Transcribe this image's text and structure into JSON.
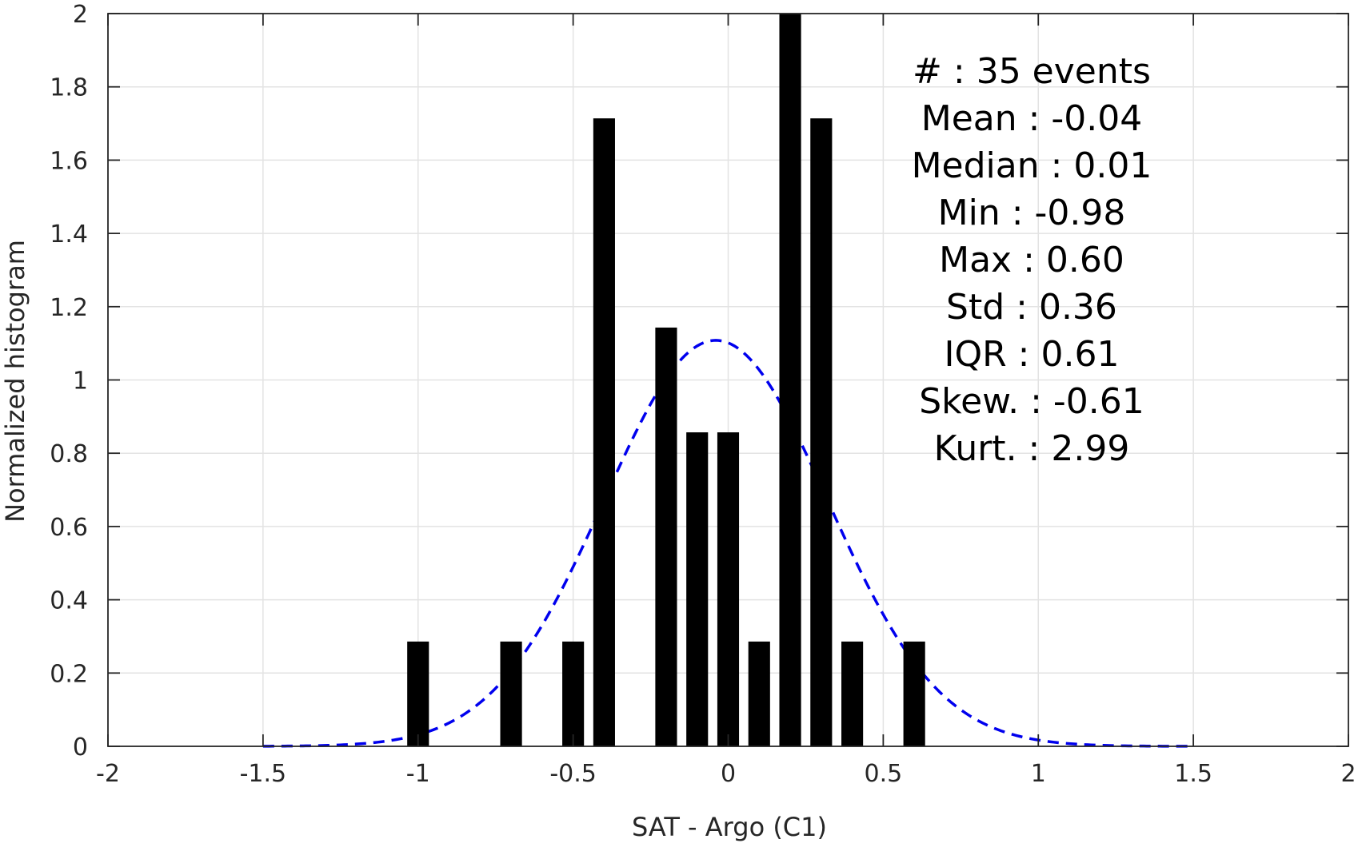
{
  "chart_data": {
    "type": "bar",
    "title": "",
    "xlabel": "SAT - Argo (C1)",
    "ylabel": "Normalized histogram",
    "xlim": [
      -2,
      2
    ],
    "ylim": [
      0,
      2
    ],
    "grid": true,
    "xticks": [
      -2,
      -1.5,
      -1,
      -0.5,
      0,
      0.5,
      1,
      1.5,
      2
    ],
    "xtick_labels": [
      "-2",
      "-1.5",
      "-1",
      "-0.5",
      "0",
      "0.5",
      "1",
      "1.5",
      "2"
    ],
    "yticks": [
      0,
      0.2,
      0.4,
      0.6,
      0.8,
      1,
      1.2,
      1.4,
      1.6,
      1.8,
      2
    ],
    "ytick_labels": [
      "0",
      "0.2",
      "0.4",
      "0.6",
      "0.8",
      "1",
      "1.2",
      "1.4",
      "1.6",
      "1.8",
      "2"
    ],
    "bar_width": 0.07,
    "bar_color": "#000000",
    "bars": [
      {
        "x": -1.0,
        "y": 0.286
      },
      {
        "x": -0.7,
        "y": 0.286
      },
      {
        "x": -0.5,
        "y": 0.286
      },
      {
        "x": -0.4,
        "y": 1.714
      },
      {
        "x": -0.2,
        "y": 1.143
      },
      {
        "x": -0.1,
        "y": 0.857
      },
      {
        "x": 0.0,
        "y": 0.857
      },
      {
        "x": 0.1,
        "y": 0.286
      },
      {
        "x": 0.2,
        "y": 2.0
      },
      {
        "x": 0.3,
        "y": 1.714
      },
      {
        "x": 0.4,
        "y": 0.286
      },
      {
        "x": 0.6,
        "y": 0.286
      }
    ],
    "fit_curve": {
      "style": "dashed",
      "color": "#0000ee",
      "mean": -0.04,
      "std": 0.36,
      "x_range": [
        -1.5,
        1.5
      ]
    },
    "annotation_lines": [
      "#  : 35 events",
      "Mean : -0.04",
      "Median : 0.01",
      "Min : -0.98",
      "Max : 0.60",
      "Std : 0.36",
      "IQR : 0.61",
      "Skew. : -0.61",
      "Kurt. : 2.99"
    ]
  }
}
